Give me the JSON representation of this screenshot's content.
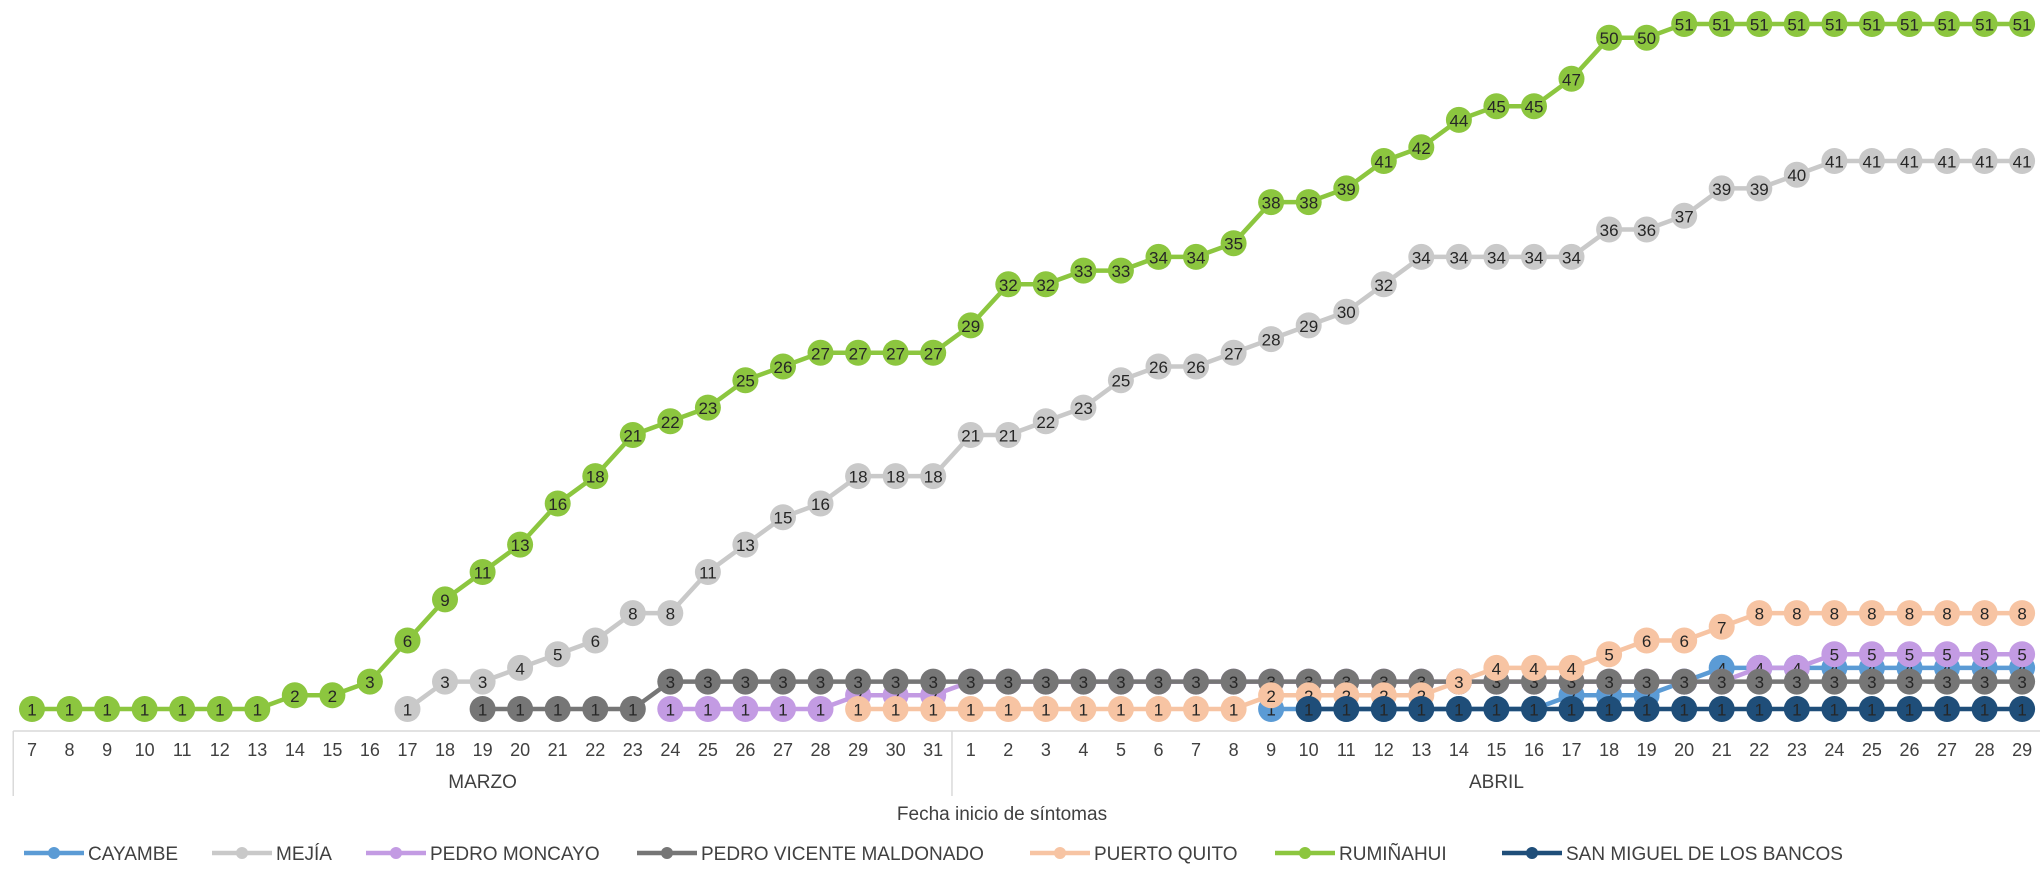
{
  "chart_data": {
    "type": "line",
    "xlabel": "Fecha inicio de síntomas",
    "months": [
      {
        "label": "MARZO",
        "start": 0,
        "end": 24
      },
      {
        "label": "ABRIL",
        "start": 25,
        "end": 53
      }
    ],
    "categories": [
      "7",
      "8",
      "9",
      "10",
      "11",
      "12",
      "13",
      "14",
      "15",
      "16",
      "17",
      "18",
      "19",
      "20",
      "21",
      "22",
      "23",
      "24",
      "25",
      "26",
      "27",
      "28",
      "29",
      "30",
      "31",
      "1",
      "2",
      "3",
      "4",
      "5",
      "6",
      "7",
      "8",
      "9",
      "10",
      "11",
      "12",
      "13",
      "14",
      "15",
      "16",
      "17",
      "18",
      "19",
      "20",
      "21",
      "22",
      "23",
      "24",
      "25",
      "26",
      "27",
      "28",
      "29"
    ],
    "ylim": [
      0,
      52
    ],
    "grid": false,
    "legend_position": "bottom",
    "series": [
      {
        "name": "CAYAMBE",
        "color": "#5B9BD5",
        "values": [
          null,
          null,
          null,
          null,
          null,
          null,
          null,
          null,
          null,
          null,
          null,
          null,
          null,
          null,
          null,
          null,
          null,
          null,
          null,
          null,
          null,
          null,
          null,
          null,
          null,
          null,
          null,
          null,
          null,
          null,
          null,
          null,
          null,
          1,
          1,
          1,
          1,
          1,
          1,
          1,
          1,
          2,
          2,
          2,
          3,
          4,
          4,
          4,
          4,
          4,
          4,
          4,
          4,
          4
        ]
      },
      {
        "name": "MEJÍA",
        "color": "#C9C9C9",
        "values": [
          null,
          null,
          null,
          null,
          null,
          null,
          null,
          null,
          null,
          null,
          1,
          3,
          3,
          4,
          5,
          6,
          8,
          8,
          11,
          13,
          15,
          16,
          18,
          18,
          18,
          21,
          21,
          22,
          23,
          25,
          26,
          26,
          27,
          28,
          29,
          30,
          32,
          34,
          34,
          34,
          34,
          34,
          36,
          36,
          37,
          39,
          39,
          40,
          41,
          41,
          41,
          41,
          41,
          41
        ]
      },
      {
        "name": "PEDRO MONCAYO",
        "color": "#C39BE3",
        "values": [
          null,
          null,
          null,
          null,
          null,
          null,
          null,
          null,
          null,
          null,
          null,
          null,
          null,
          null,
          null,
          null,
          null,
          1,
          1,
          1,
          1,
          1,
          2,
          2,
          2,
          3,
          3,
          3,
          3,
          3,
          3,
          3,
          3,
          3,
          3,
          3,
          3,
          3,
          3,
          3,
          3,
          3,
          3,
          3,
          3,
          3,
          4,
          4,
          5,
          5,
          5,
          5,
          5,
          5
        ]
      },
      {
        "name": "PEDRO VICENTE MALDONADO",
        "color": "#767676",
        "values": [
          null,
          null,
          null,
          null,
          null,
          null,
          null,
          null,
          null,
          null,
          null,
          null,
          1,
          1,
          1,
          1,
          1,
          3,
          3,
          3,
          3,
          3,
          3,
          3,
          3,
          3,
          3,
          3,
          3,
          3,
          3,
          3,
          3,
          3,
          3,
          3,
          3,
          3,
          3,
          3,
          3,
          3,
          3,
          3,
          3,
          3,
          3,
          3,
          3,
          3,
          3,
          3,
          3,
          3
        ]
      },
      {
        "name": "PUERTO QUITO",
        "color": "#F7C4A3",
        "values": [
          null,
          null,
          null,
          null,
          null,
          null,
          null,
          null,
          null,
          null,
          null,
          null,
          null,
          null,
          null,
          null,
          null,
          null,
          null,
          null,
          null,
          null,
          1,
          1,
          1,
          1,
          1,
          1,
          1,
          1,
          1,
          1,
          1,
          2,
          2,
          2,
          2,
          2,
          3,
          4,
          4,
          4,
          5,
          6,
          6,
          7,
          8,
          8,
          8,
          8,
          8,
          8,
          8,
          8
        ]
      },
      {
        "name": "RUMIÑAHUI",
        "color": "#8CC63F",
        "values": [
          1,
          1,
          1,
          1,
          1,
          1,
          1,
          2,
          2,
          3,
          6,
          9,
          11,
          13,
          16,
          18,
          21,
          22,
          23,
          25,
          26,
          27,
          27,
          27,
          27,
          29,
          32,
          32,
          33,
          33,
          34,
          34,
          35,
          38,
          38,
          39,
          41,
          42,
          44,
          45,
          45,
          47,
          50,
          50,
          51,
          51,
          51,
          51,
          51,
          51,
          51,
          51,
          51,
          51
        ]
      },
      {
        "name": "SAN MIGUEL DE LOS BANCOS",
        "color": "#1F4E79",
        "values": [
          null,
          null,
          null,
          null,
          null,
          null,
          null,
          null,
          null,
          null,
          null,
          null,
          null,
          null,
          null,
          null,
          null,
          null,
          null,
          null,
          null,
          null,
          null,
          null,
          null,
          null,
          null,
          null,
          null,
          null,
          null,
          null,
          null,
          null,
          1,
          1,
          1,
          1,
          1,
          1,
          1,
          1,
          1,
          1,
          1,
          1,
          1,
          1,
          1,
          1,
          1,
          1,
          1,
          1
        ]
      }
    ]
  }
}
